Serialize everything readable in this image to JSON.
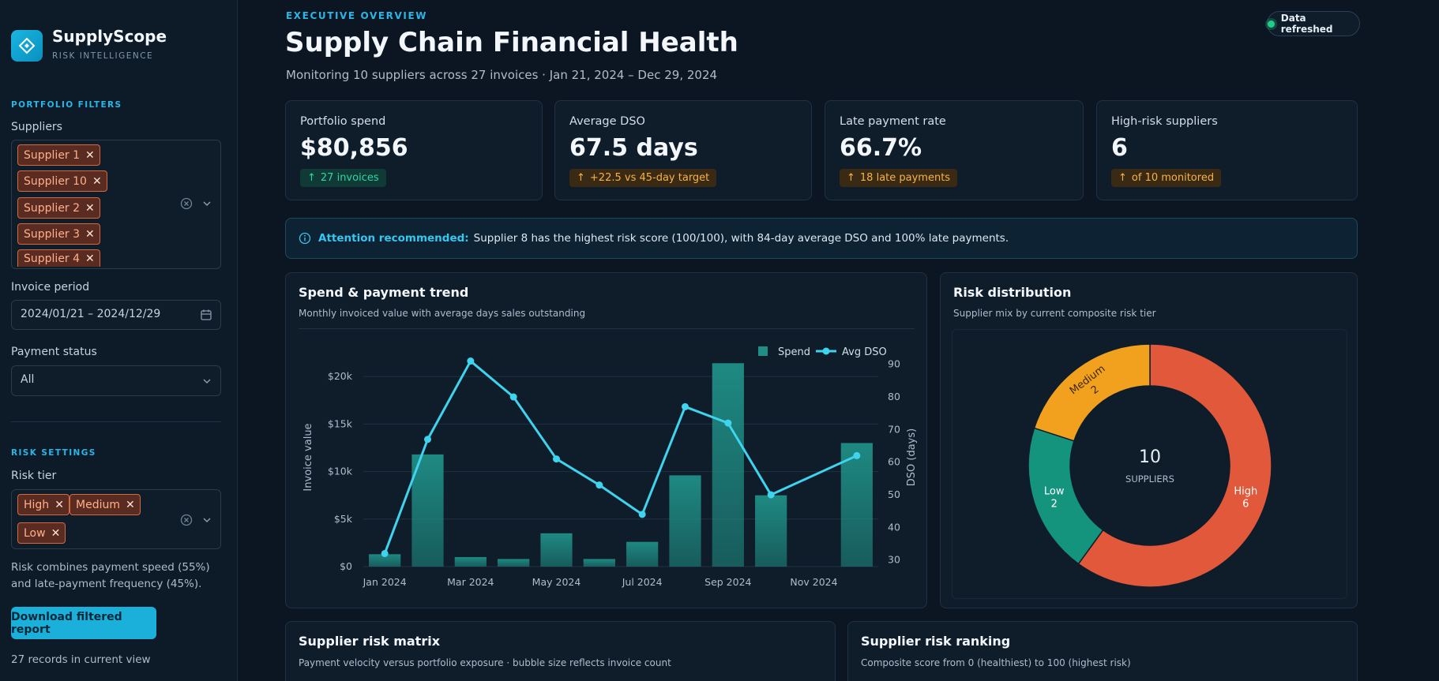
{
  "brand": {
    "name": "SupplyScope",
    "tagline": "RISK INTELLIGENCE"
  },
  "sidebar": {
    "filters_heading": "PORTFOLIO FILTERS",
    "suppliers_label": "Suppliers",
    "supplier_chips": [
      "Supplier 1",
      "Supplier 10",
      "Supplier 2",
      "Supplier 3",
      "Supplier 4"
    ],
    "invoice_period_label": "Invoice period",
    "invoice_period_value": "2024/01/21 – 2024/12/29",
    "payment_status_label": "Payment status",
    "payment_status_value": "All",
    "risk_heading": "RISK SETTINGS",
    "risk_tier_label": "Risk tier",
    "risk_chips": [
      "High",
      "Medium",
      "Low"
    ],
    "risk_note": "Risk combines payment speed (55%) and late-payment frequency (45%).",
    "download_label": "Download filtered report",
    "records_text": "27 records in current view"
  },
  "header": {
    "eyebrow": "EXECUTIVE OVERVIEW",
    "title": "Supply Chain Financial Health",
    "subtitle": "Monitoring 10 suppliers across 27 invoices · Jan 21, 2024 – Dec 29, 2024",
    "refresh_label": "Data refreshed"
  },
  "kpis": [
    {
      "label": "Portfolio spend",
      "value": "$80,856",
      "badge": "27 invoices",
      "tone": "good"
    },
    {
      "label": "Average DSO",
      "value": "67.5 days",
      "badge": "+22.5 vs 45-day target",
      "tone": "warn"
    },
    {
      "label": "Late payment rate",
      "value": "66.7%",
      "badge": "18 late payments",
      "tone": "warn"
    },
    {
      "label": "High-risk suppliers",
      "value": "6",
      "badge": "of 10 monitored",
      "tone": "warn"
    }
  ],
  "alert": {
    "highlight": "Attention recommended:",
    "text": "Supplier 8 has the highest risk score (100/100), with 84-day average DSO and 100% late payments."
  },
  "trend_panel": {
    "title": "Spend & payment trend",
    "subtitle": "Monthly invoiced value with average days sales outstanding"
  },
  "risk_panel": {
    "title": "Risk distribution",
    "subtitle": "Supplier mix by current composite risk tier"
  },
  "matrix_panel": {
    "title": "Supplier risk matrix",
    "subtitle": "Payment velocity versus portfolio exposure · bubble size reflects invoice count"
  },
  "ranking_panel": {
    "title": "Supplier risk ranking",
    "subtitle": "Composite score from 0 (healthiest) to 100 (highest risk)"
  },
  "colors": {
    "accent": "#1bb0da",
    "spend": "#1f8f86",
    "dso": "#3fd3ee",
    "high": "#e2583a",
    "medium": "#f2a11e",
    "low": "#14947c"
  },
  "chart_data": [
    {
      "type": "bar+line",
      "categories": [
        "Jan 2024",
        "Feb 2024",
        "Mar 2024",
        "Apr 2024",
        "May 2024",
        "Jun 2024",
        "Jul 2024",
        "Aug 2024",
        "Sep 2024",
        "Oct 2024",
        "Nov 2024",
        "Dec 2024"
      ],
      "xticks": [
        "Jan 2024",
        "Mar 2024",
        "May 2024",
        "Jul 2024",
        "Sep 2024",
        "Nov 2024"
      ],
      "series": [
        {
          "name": "Spend",
          "type": "bar",
          "axis": "left",
          "values": [
            1300,
            11800,
            1000,
            800,
            3500,
            800,
            2600,
            9600,
            21400,
            7500,
            0,
            13000
          ]
        },
        {
          "name": "Avg DSO",
          "type": "line",
          "axis": "right",
          "values": [
            32,
            67,
            91,
            80,
            61,
            53,
            44,
            77,
            72,
            50,
            null,
            62
          ]
        }
      ],
      "ylabel": "Invoice value",
      "y2label": "DSO (days)",
      "ylim": [
        0,
        23000
      ],
      "y2lim": [
        28,
        95
      ],
      "yticks": [
        0,
        5000,
        10000,
        15000,
        20000
      ],
      "yticklabels": [
        "$0",
        "$5k",
        "$10k",
        "$15k",
        "$20k"
      ],
      "y2ticks": [
        30,
        40,
        50,
        60,
        70,
        80,
        90
      ],
      "legend": "top-right",
      "grid": true
    },
    {
      "type": "pie",
      "donut": true,
      "categories": [
        "High",
        "Low",
        "Medium"
      ],
      "values": [
        6,
        2,
        2
      ],
      "center_value": "10",
      "center_label": "SUPPLIERS"
    }
  ]
}
